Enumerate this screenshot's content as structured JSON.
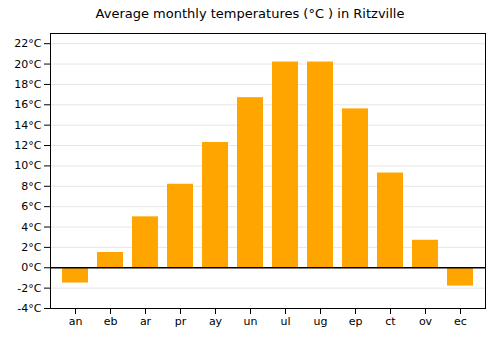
{
  "chart_data": {
    "type": "bar",
    "title": "Average monthly temperatures (°C ) in Ritzville",
    "categories": [
      "an",
      "eb",
      "ar",
      "pr",
      "ay",
      "un",
      "ul",
      "ug",
      "ep",
      "ct",
      "ov",
      "ec"
    ],
    "values": [
      -1.5,
      1.5,
      5.0,
      8.2,
      12.3,
      16.7,
      20.2,
      20.2,
      15.6,
      9.3,
      2.7,
      -1.8
    ],
    "color": "#FFA500",
    "ylim": [
      -4,
      23
    ],
    "yticks": [
      {
        "value": -4,
        "label": "-4°C"
      },
      {
        "value": -2,
        "label": "-2°C"
      },
      {
        "value": 0,
        "label": "0°C"
      },
      {
        "value": 2,
        "label": "2°C"
      },
      {
        "value": 4,
        "label": "4°C"
      },
      {
        "value": 6,
        "label": "6°C"
      },
      {
        "value": 8,
        "label": "8°C"
      },
      {
        "value": 10,
        "label": "10°C"
      },
      {
        "value": 12,
        "label": "12°C"
      },
      {
        "value": 14,
        "label": "14°C"
      },
      {
        "value": 16,
        "label": "16°C"
      },
      {
        "value": 18,
        "label": "18°C"
      },
      {
        "value": 20,
        "label": "20°C"
      },
      {
        "value": 22,
        "label": "22°C"
      }
    ],
    "grid": true
  }
}
